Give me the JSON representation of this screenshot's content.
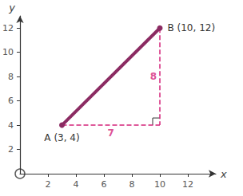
{
  "chart_data": {
    "type": "line",
    "x_label": "x",
    "y_label": "y",
    "xlim": [
      0,
      14
    ],
    "ylim": [
      0,
      13
    ],
    "xticks": [
      2,
      4,
      6,
      8,
      10,
      12
    ],
    "yticks": [
      2,
      4,
      6,
      8,
      10,
      12
    ],
    "grid": false,
    "color": "#8b2b62",
    "points": [
      {
        "label": "A (3, 4)",
        "x": 3,
        "y": 4
      },
      {
        "label": "B (10, 12)",
        "x": 10,
        "y": 12
      }
    ],
    "legs": {
      "color": "#d4237a",
      "line_style": "dashed",
      "items": [
        {
          "label": "7",
          "from": [
            3,
            4
          ],
          "to": [
            10,
            4
          ]
        },
        {
          "label": "8",
          "from": [
            10,
            12
          ],
          "to": [
            10,
            4
          ]
        }
      ]
    }
  }
}
